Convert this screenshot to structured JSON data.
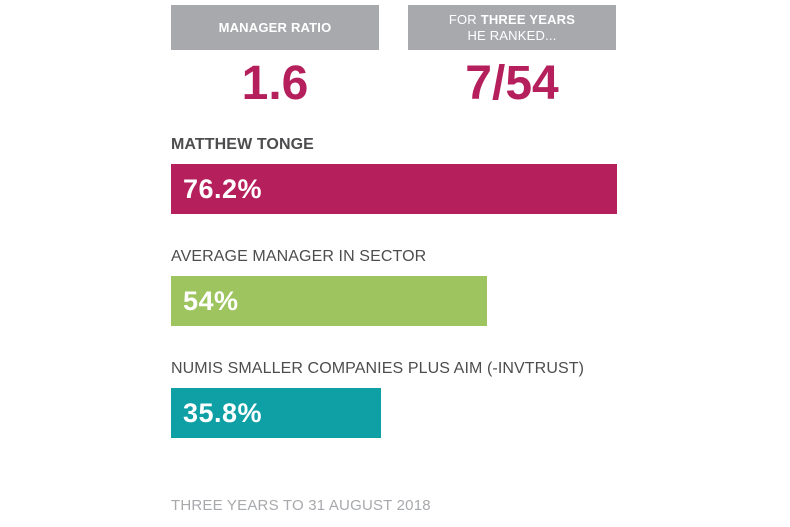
{
  "stats": {
    "manager_ratio": {
      "label": "MANAGER RATIO",
      "value": "1.6"
    },
    "ranked": {
      "label_pre": "FOR ",
      "label_bold": "THREE YEARS",
      "label_line2": "HE RANKED...",
      "value": "7/54"
    }
  },
  "chart_data": {
    "type": "bar",
    "orientation": "horizontal",
    "title": "",
    "xlabel": "",
    "ylabel": "",
    "xlim": [
      0,
      76.2
    ],
    "grid": false,
    "series": [
      {
        "name": "MATTHEW TONGE",
        "value": 76.2,
        "value_label": "76.2%",
        "color": "#b51f5b",
        "name_bold": true
      },
      {
        "name": "AVERAGE MANAGER IN SECTOR",
        "value": 54,
        "value_label": "54%",
        "color": "#9dc45e",
        "name_bold": false
      },
      {
        "name": "NUMIS SMALLER COMPANIES PLUS AIM (-INVTRUST)",
        "value": 35.8,
        "value_label": "35.8%",
        "color": "#0fa0a6",
        "name_bold": false
      }
    ]
  },
  "colors": {
    "accent": "#b51f5b",
    "box_grey": "#a7a9ac",
    "text_dark": "#4d4d4f"
  },
  "footnote": "THREE YEARS TO 31 AUGUST 2018"
}
